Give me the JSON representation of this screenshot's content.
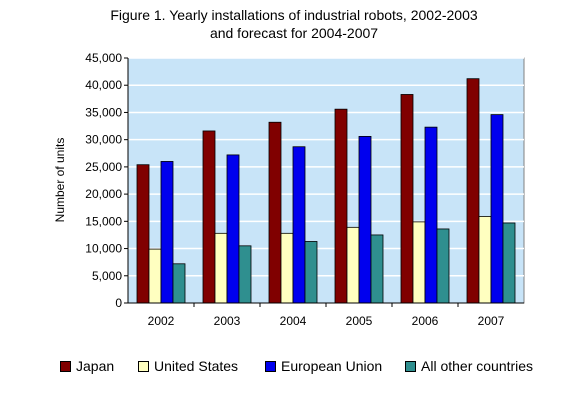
{
  "chart_data": {
    "type": "bar",
    "title": "Figure 1.  Yearly installations of industrial robots, 2002-2003",
    "subtitle": "and forecast for 2004-2007",
    "xlabel": "",
    "ylabel": "Number of units",
    "ylim": [
      0,
      45000
    ],
    "ytick_step": 5000,
    "yticks": [
      "0",
      "5,000",
      "10,000",
      "15,000",
      "20,000",
      "25,000",
      "30,000",
      "35,000",
      "40,000",
      "45,000"
    ],
    "grid": true,
    "legend_position": "bottom",
    "categories": [
      "2002",
      "2003",
      "2004",
      "2005",
      "2006",
      "2007"
    ],
    "series": [
      {
        "name": "Japan",
        "color": "#800000",
        "values": [
          25400,
          31600,
          33200,
          35600,
          38300,
          41200
        ]
      },
      {
        "name": "United States",
        "color": "#ffffc0",
        "values": [
          9900,
          12800,
          12800,
          13900,
          14900,
          15900
        ]
      },
      {
        "name": "European Union",
        "color": "#0000ee",
        "values": [
          26000,
          27200,
          28700,
          30600,
          32300,
          34600
        ]
      },
      {
        "name": "All other countries",
        "color": "#2f8f8f",
        "values": [
          7200,
          10500,
          11300,
          12500,
          13600,
          14700
        ]
      }
    ],
    "plot_background": "#c8e4f8"
  }
}
